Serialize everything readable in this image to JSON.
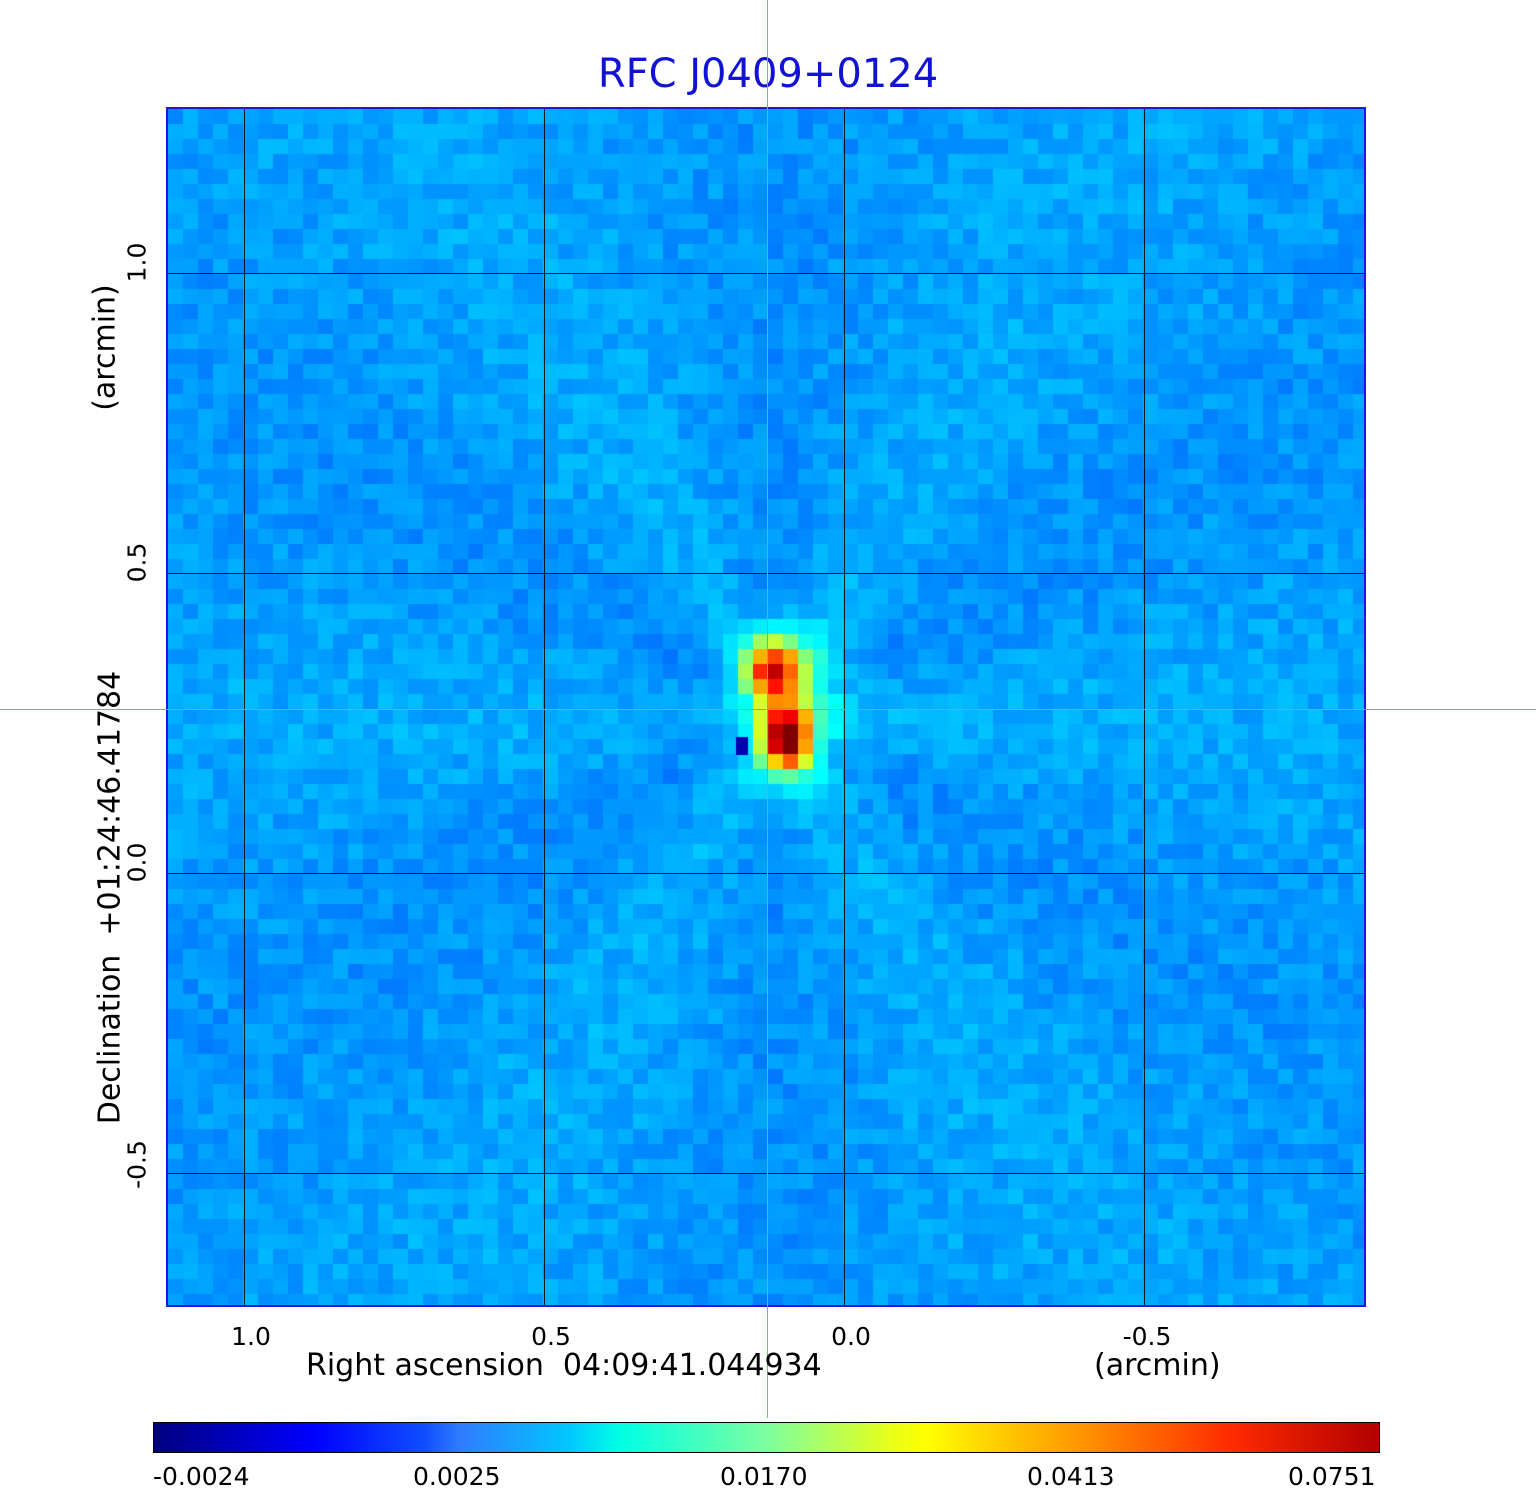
{
  "title": "RFC J0409+0124",
  "x_axis": {
    "label": "Right ascension  04:09:41.044934",
    "unit": "(arcmin)",
    "ticks": [
      "1.0",
      "0.5",
      "0.0",
      "-0.5"
    ]
  },
  "y_axis": {
    "label": "Declination  +01:24:46.41784",
    "unit": "(arcmin)",
    "ticks": [
      "1.0",
      "0.5",
      "0.0",
      "-0.5"
    ]
  },
  "colorbar": {
    "ticks": [
      "-0.0024",
      "0.0025",
      "0.0170",
      "0.0413",
      "0.0751"
    ]
  },
  "colors": {
    "title": "#1212d4",
    "background_map": "#1e5cf0",
    "crosshair": "#33e633"
  }
}
